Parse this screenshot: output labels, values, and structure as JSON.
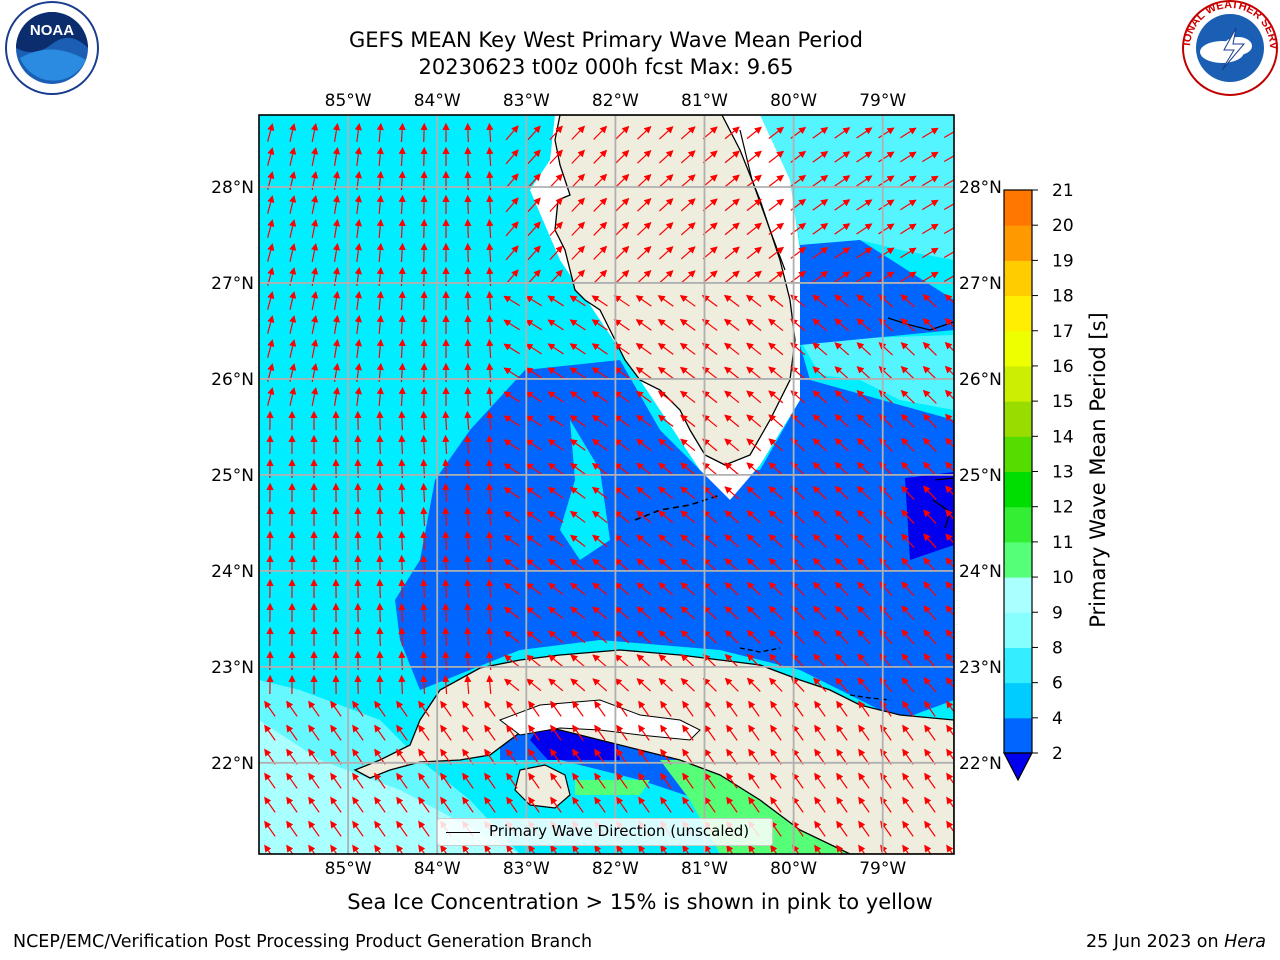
{
  "title": {
    "line1": "GEFS MEAN Key West Primary Wave Mean Period",
    "line2": "20230623 t00z 000h fcst   Max: 9.65"
  },
  "logos": {
    "left": {
      "icon": "noaa-logo-icon",
      "text": "NOAA"
    },
    "right": {
      "icon": "nws-logo-icon",
      "text": "NATIONAL WEATHER SERVICE"
    }
  },
  "map": {
    "lon_labels": [
      "85°W",
      "84°W",
      "83°W",
      "82°W",
      "81°W",
      "80°W",
      "79°W"
    ],
    "lat_labels": [
      "28°N",
      "27°N",
      "26°N",
      "25°N",
      "24°N",
      "23°N",
      "22°N"
    ],
    "lon_values": [
      -85,
      -84,
      -83,
      -82,
      -81,
      -80,
      -79
    ],
    "lat_values": [
      28,
      27,
      26,
      25,
      24,
      23,
      22
    ],
    "lon_range": [
      -86,
      -78.2
    ],
    "lat_range": [
      21.05,
      28.75
    ],
    "grid": true,
    "land_color": "#efedde",
    "arrow_color": "#ff0000"
  },
  "colorbar": {
    "label": "Primary Wave Mean Period [s]",
    "ticks": [
      "2",
      "4",
      "6",
      "8",
      "9",
      "10",
      "11",
      "12",
      "13",
      "14",
      "15",
      "16",
      "17",
      "18",
      "19",
      "20",
      "21"
    ],
    "colors": [
      "#0066ff",
      "#00ccff",
      "#33eeff",
      "#88ffff",
      "#aaffff",
      "#55ff77",
      "#33ee33",
      "#00dd00",
      "#55dd00",
      "#99dd00",
      "#ccee00",
      "#eeff00",
      "#ffee00",
      "#ffcc00",
      "#ff9900",
      "#ff7700",
      "#ff4400",
      "#ff1100"
    ],
    "under_color": "#0000ee"
  },
  "legend": {
    "label": "Primary Wave Direction (unscaled)"
  },
  "notes": {
    "sea_ice": "Sea Ice Concentration > 15% is shown in pink to yellow"
  },
  "footer": {
    "left": "NCEP/EMC/Verification Post Processing Product Generation Branch",
    "date": "25 Jun 2023 on ",
    "machine": "Hera"
  }
}
